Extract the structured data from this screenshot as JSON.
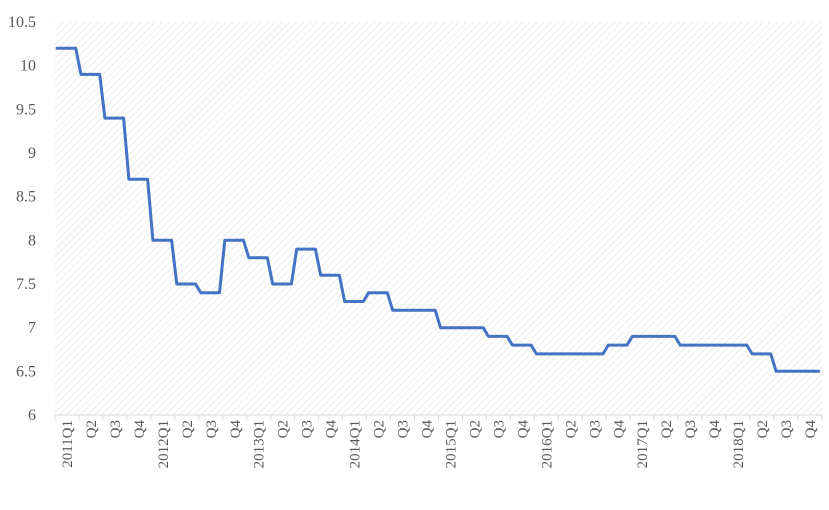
{
  "chart_data": {
    "type": "line",
    "title": "",
    "xlabel": "",
    "ylabel": "",
    "ylim": [
      6,
      10.5
    ],
    "yticks": [
      "6",
      "6.5",
      "7",
      "7.5",
      "8",
      "8.5",
      "9",
      "9.5",
      "10",
      "10.5"
    ],
    "grid": false,
    "legend": "none",
    "categories": [
      "2011Q1",
      "Q2",
      "Q3",
      "Q4",
      "2012Q1",
      "Q2",
      "Q3",
      "Q4",
      "2013Q1",
      "Q2",
      "Q3",
      "Q4",
      "2014Q1",
      "Q2",
      "Q3",
      "Q4",
      "2015Q1",
      "Q2",
      "Q3",
      "Q4",
      "2016Q1",
      "Q2",
      "Q3",
      "Q4",
      "2017Q1",
      "Q2",
      "Q3",
      "Q4",
      "2018Q1",
      "Q2",
      "Q3",
      "Q4"
    ],
    "series": [
      {
        "color": "#4472C4",
        "values": [
          10.2,
          9.9,
          9.4,
          8.7,
          8.0,
          7.5,
          7.4,
          8.0,
          7.8,
          7.5,
          7.9,
          7.6,
          7.3,
          7.4,
          7.2,
          7.2,
          7.0,
          7.0,
          6.9,
          6.8,
          6.7,
          6.7,
          6.7,
          6.8,
          6.9,
          6.9,
          6.8,
          6.8,
          6.8,
          6.7,
          6.5,
          6.5
        ]
      }
    ],
    "colors": {
      "line": "#4472C4",
      "axis": "#d9d9d9",
      "hatch": "#e3e3e3",
      "text": "#595959"
    }
  }
}
